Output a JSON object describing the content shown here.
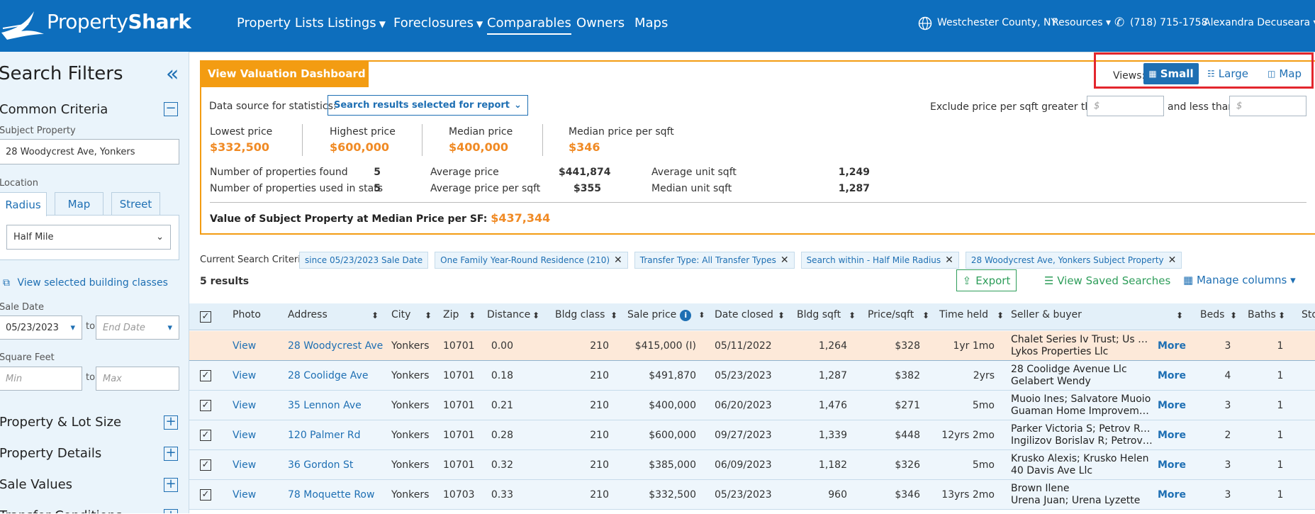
{
  "header": {
    "logo": [
      "Property",
      "Shark"
    ],
    "nav": [
      "Property Lists",
      "Listings",
      "Foreclosures",
      "Comparables",
      "Owners",
      "Maps"
    ],
    "location": "Westchester County, NY",
    "resources": "Resources",
    "phone": "(718) 715-1758",
    "user": "Alexandra Decuseara"
  },
  "sidebar": {
    "title": "Search Filters",
    "section": "Common Criteria",
    "subject_label": "Subject Property",
    "subject_value": "28 Woodycrest Ave, Yonkers",
    "location_label": "Location",
    "tabs": [
      "Radius",
      "Map",
      "Street"
    ],
    "radius": "Half Mile",
    "classes_link": "View selected building classes",
    "sale_date_label": "Sale Date",
    "sale_date_from": "05/23/2023",
    "to": "to",
    "sale_date_end": "End Date",
    "sqft_label": "Square Feet",
    "sqft_min": "Min",
    "sqft_max": "Max",
    "sections": [
      "Property & Lot Size",
      "Property Details",
      "Sale Values",
      "Transfer Conditions"
    ]
  },
  "dashboard": {
    "button": "View Valuation Dashboard",
    "views_label": "Views:",
    "views": [
      "Small",
      "Large",
      "Map"
    ],
    "data_source_label": "Data source for statistics:",
    "data_source_value": "Search results selected for report",
    "exclude_label": "Exclude price per sqft greater than",
    "currency_placeholder": "$",
    "less_than_label": "and less than",
    "prices": [
      {
        "label": "Lowest price",
        "value": "$332,500"
      },
      {
        "label": "Highest price",
        "value": "$600,000"
      },
      {
        "label": "Median price",
        "value": "$400,000"
      },
      {
        "label": "Median price per sqft",
        "value": "$346"
      }
    ],
    "stats": [
      [
        {
          "label": "Number of properties found",
          "value": "5"
        },
        {
          "label": "Average price",
          "value": "$441,874"
        },
        {
          "label": "Average unit sqft",
          "value": "1,249"
        }
      ],
      [
        {
          "label": "Number of properties used in stats",
          "value": "5"
        },
        {
          "label": "Average price per sqft",
          "value": "$355"
        },
        {
          "label": "Median unit sqft",
          "value": "1,287"
        }
      ]
    ],
    "subject_value_label": "Value of Subject Property at Median Price per SF:",
    "subject_value": "$437,344"
  },
  "criteria": {
    "label": "Current Search Criteria",
    "chips": [
      "since 05/23/2023 Sale Date",
      "One Family Year-Round Residence (210)",
      "Transfer Type: All Transfer Types",
      "Search within - Half Mile Radius",
      "28 Woodycrest Ave, Yonkers Subject Property"
    ],
    "results": "5 results",
    "export": "Export",
    "saved_searches": "View Saved Searches",
    "manage_columns": "Manage columns"
  },
  "table": {
    "columns": [
      "Photo",
      "Address",
      "City",
      "Zip",
      "Distance",
      "Bldg class",
      "Sale price",
      "Date closed",
      "Bldg sqft",
      "Price/sqft",
      "Time held",
      "Seller & buyer",
      "Beds",
      "Baths",
      "Sto"
    ],
    "rows": [
      [
        "View",
        "28 Woodycrest Ave",
        "Yonkers",
        "10701",
        "0.00",
        "210",
        "$415,000 (I)",
        "05/11/2022",
        "1,264",
        "$328",
        "1yr 1mo",
        "Chalet Series Iv Trust; Us Ba...",
        "Lykos Properties Llc",
        "More",
        "3",
        "1"
      ],
      [
        "View",
        "28 Coolidge Ave",
        "Yonkers",
        "10701",
        "0.18",
        "210",
        "$491,870",
        "05/23/2023",
        "1,287",
        "$382",
        "2yrs",
        "28 Coolidge Avenue Llc",
        "Gelabert Wendy",
        "More",
        "4",
        "1"
      ],
      [
        "View",
        "35 Lennon Ave",
        "Yonkers",
        "10701",
        "0.21",
        "210",
        "$400,000",
        "06/20/2023",
        "1,476",
        "$271",
        "5mo",
        "Muoio Ines; Salvatore Muoio",
        "Guaman Home Improveme...",
        "More",
        "3",
        "1"
      ],
      [
        "View",
        "120 Palmer Rd",
        "Yonkers",
        "10701",
        "0.28",
        "210",
        "$600,000",
        "09/27/2023",
        "1,339",
        "$448",
        "12yrs 2mo",
        "Parker Victoria S; Petrov Ra...",
        "Ingilizov Borislav R; Petrova...",
        "More",
        "2",
        "1"
      ],
      [
        "View",
        "36 Gordon St",
        "Yonkers",
        "10701",
        "0.32",
        "210",
        "$385,000",
        "06/09/2023",
        "1,182",
        "$326",
        "5mo",
        "Krusko Alexis; Krusko Helen",
        "40 Davis Ave Llc",
        "More",
        "3",
        "1"
      ],
      [
        "View",
        "78 Moquette Row",
        "Yonkers",
        "10703",
        "0.33",
        "210",
        "$332,500",
        "05/23/2023",
        "960",
        "$346",
        "13yrs 2mo",
        "Brown Ilene",
        "Urena Juan; Urena Lyzette",
        "More",
        "3",
        "1"
      ]
    ]
  }
}
